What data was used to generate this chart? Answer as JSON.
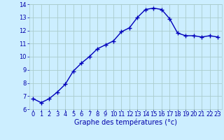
{
  "x": [
    0,
    1,
    2,
    3,
    4,
    5,
    6,
    7,
    8,
    9,
    10,
    11,
    12,
    13,
    14,
    15,
    16,
    17,
    18,
    19,
    20,
    21,
    22,
    23
  ],
  "y": [
    6.8,
    6.5,
    6.8,
    7.3,
    7.9,
    8.9,
    9.5,
    10.0,
    10.6,
    10.9,
    11.2,
    11.9,
    12.2,
    13.0,
    13.6,
    13.7,
    13.6,
    12.9,
    11.8,
    11.6,
    11.6,
    11.5,
    11.6,
    11.5
  ],
  "xlabel": "Graphe des températures (°c)",
  "ylim": [
    6,
    14
  ],
  "xlim_min": -0.5,
  "xlim_max": 23.5,
  "yticks": [
    6,
    7,
    8,
    9,
    10,
    11,
    12,
    13,
    14
  ],
  "xticks": [
    0,
    1,
    2,
    3,
    4,
    5,
    6,
    7,
    8,
    9,
    10,
    11,
    12,
    13,
    14,
    15,
    16,
    17,
    18,
    19,
    20,
    21,
    22,
    23
  ],
  "line_color": "#0000bb",
  "marker": "+",
  "bg_color": "#cceeff",
  "grid_color": "#aacccc",
  "tick_label_color": "#0000aa",
  "xlabel_color": "#0000aa",
  "xlabel_fontsize": 7,
  "tick_fontsize": 6,
  "line_width": 1.0,
  "marker_size": 4,
  "marker_edge_width": 1.0
}
